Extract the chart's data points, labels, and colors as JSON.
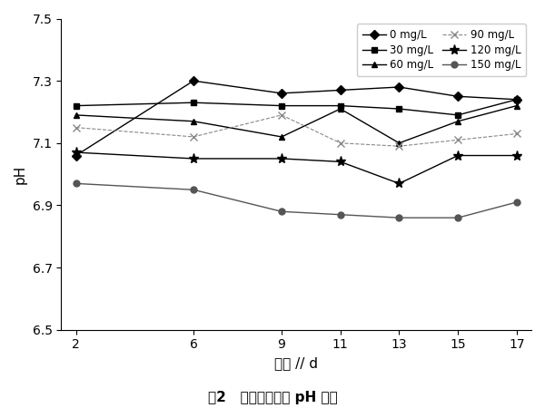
{
  "x": [
    2,
    6,
    9,
    11,
    13,
    15,
    17
  ],
  "series": [
    {
      "label": "0 mg/L",
      "values": [
        7.06,
        7.3,
        7.26,
        7.27,
        7.28,
        7.25,
        7.24
      ],
      "color": "#000000",
      "marker": "D",
      "linestyle": "-",
      "markersize": 5,
      "markerfacecolor": "#000000",
      "linewidth": 1.0
    },
    {
      "label": "30 mg/L",
      "values": [
        7.22,
        7.23,
        7.22,
        7.22,
        7.21,
        7.19,
        7.24
      ],
      "color": "#000000",
      "marker": "s",
      "linestyle": "-",
      "markersize": 5,
      "markerfacecolor": "#000000",
      "linewidth": 1.0
    },
    {
      "label": "60 mg/L",
      "values": [
        7.19,
        7.17,
        7.12,
        7.21,
        7.1,
        7.17,
        7.22
      ],
      "color": "#000000",
      "marker": "^",
      "linestyle": "-",
      "markersize": 5,
      "markerfacecolor": "#000000",
      "linewidth": 1.0
    },
    {
      "label": "90 mg/L",
      "values": [
        7.15,
        7.12,
        7.19,
        7.1,
        7.09,
        7.11,
        7.13
      ],
      "color": "#888888",
      "marker": "x",
      "linestyle": "--",
      "markersize": 6,
      "markerfacecolor": "#888888",
      "linewidth": 0.8
    },
    {
      "label": "120 mg/L",
      "values": [
        7.07,
        7.05,
        7.05,
        7.04,
        6.97,
        7.06,
        7.06
      ],
      "color": "#000000",
      "marker": "*",
      "linestyle": "-",
      "markersize": 8,
      "markerfacecolor": "#000000",
      "linewidth": 1.0
    },
    {
      "label": "150 mg/L",
      "values": [
        6.97,
        6.95,
        6.88,
        6.87,
        6.86,
        6.86,
        6.91
      ],
      "color": "#555555",
      "marker": "o",
      "linestyle": "-",
      "markersize": 5,
      "markerfacecolor": "#555555",
      "linewidth": 1.0
    }
  ],
  "xlabel": "时间 // d",
  "ylabel": "pH",
  "ylim": [
    6.5,
    7.5
  ],
  "yticks": [
    6.5,
    6.7,
    6.9,
    7.1,
    7.3,
    7.5
  ],
  "ytick_labels": [
    "6.5",
    "6.7",
    "6.9",
    "7.1",
    "7.3",
    "7.5"
  ],
  "xticks": [
    2,
    6,
    9,
    11,
    13,
    15,
    17
  ],
  "caption": "图2   厉氧消化系统 pH 变化",
  "legend_order": [
    0,
    1,
    2,
    3,
    4,
    5
  ],
  "legend_ncol": 2,
  "figsize": [
    6.0,
    4.5
  ],
  "dpi": 100,
  "bg_color": "#ffffff"
}
